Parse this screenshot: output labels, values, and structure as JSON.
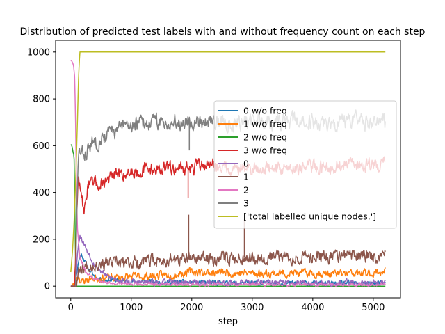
{
  "chart_data": {
    "type": "line",
    "title": "Distribution of predicted test labels with and without frequency count on each step",
    "xlabel": "step",
    "ylabel": "",
    "xlim": [
      -250,
      5450
    ],
    "ylim": [
      -50,
      1050
    ],
    "xticks": [
      0,
      1000,
      2000,
      3000,
      4000,
      5000
    ],
    "yticks": [
      0,
      200,
      400,
      600,
      800,
      1000
    ],
    "grid": false,
    "legend_position": "center-right",
    "x_start": 0,
    "x_end": 5200,
    "series": [
      {
        "name": "0 w/o freq",
        "color": "#1f77b4",
        "points": [
          [
            0,
            0
          ],
          [
            60,
            0
          ],
          [
            100,
            60
          ],
          [
            140,
            120
          ],
          [
            180,
            135
          ],
          [
            230,
            110
          ],
          [
            280,
            80
          ],
          [
            330,
            60
          ],
          [
            400,
            40
          ],
          [
            500,
            30
          ],
          [
            700,
            25
          ],
          [
            1000,
            20
          ],
          [
            1500,
            18
          ],
          [
            2000,
            15
          ],
          [
            2500,
            14
          ],
          [
            3000,
            13
          ],
          [
            4000,
            12
          ],
          [
            5200,
            12
          ]
        ],
        "noise": 8,
        "seed": 11
      },
      {
        "name": "1 w/o freq",
        "color": "#ff7f0e",
        "points": [
          [
            0,
            0
          ],
          [
            60,
            0
          ],
          [
            120,
            50
          ],
          [
            180,
            15
          ],
          [
            260,
            30
          ],
          [
            400,
            35
          ],
          [
            600,
            35
          ],
          [
            1000,
            40
          ],
          [
            1500,
            45
          ],
          [
            1800,
            55
          ],
          [
            2000,
            60
          ],
          [
            2500,
            58
          ],
          [
            3000,
            55
          ],
          [
            3500,
            55
          ],
          [
            4000,
            55
          ],
          [
            4500,
            52
          ],
          [
            5000,
            55
          ],
          [
            5200,
            65
          ]
        ],
        "noise": 14,
        "seed": 23
      },
      {
        "name": "2 w/o freq",
        "color": "#2ca02c",
        "points": [
          [
            0,
            605
          ],
          [
            20,
            600
          ],
          [
            40,
            570
          ],
          [
            55,
            560
          ],
          [
            70,
            300
          ],
          [
            85,
            0
          ],
          [
            5200,
            0
          ]
        ],
        "noise": 0,
        "seed": 31
      },
      {
        "name": "3 w/o freq",
        "color": "#d62728",
        "points": [
          [
            60,
            0
          ],
          [
            100,
            300
          ],
          [
            130,
            480
          ],
          [
            160,
            400
          ],
          [
            200,
            350
          ],
          [
            240,
            330
          ],
          [
            280,
            440
          ],
          [
            350,
            430
          ],
          [
            500,
            440
          ],
          [
            700,
            470
          ],
          [
            1000,
            490
          ],
          [
            1300,
            500
          ],
          [
            1600,
            500
          ],
          [
            1800,
            510
          ],
          [
            2000,
            500
          ],
          [
            2200,
            520
          ],
          [
            2500,
            510
          ],
          [
            3000,
            500
          ],
          [
            3500,
            505
          ],
          [
            4000,
            510
          ],
          [
            4500,
            515
          ],
          [
            5000,
            520
          ],
          [
            5200,
            525
          ]
        ],
        "noise": 24,
        "seed": 47
      },
      {
        "name": "0",
        "color": "#9467bd",
        "points": [
          [
            0,
            0
          ],
          [
            80,
            0
          ],
          [
            110,
            150
          ],
          [
            150,
            220
          ],
          [
            200,
            190
          ],
          [
            280,
            150
          ],
          [
            400,
            90
          ],
          [
            600,
            40
          ],
          [
            900,
            20
          ],
          [
            1200,
            15
          ],
          [
            2000,
            15
          ],
          [
            3000,
            15
          ],
          [
            4000,
            14
          ],
          [
            5200,
            15
          ]
        ],
        "noise": 10,
        "seed": 53
      },
      {
        "name": "1",
        "color": "#8c564b",
        "points": [
          [
            0,
            0
          ],
          [
            80,
            0
          ],
          [
            150,
            80
          ],
          [
            300,
            90
          ],
          [
            500,
            100
          ],
          [
            700,
            95
          ],
          [
            1000,
            100
          ],
          [
            1500,
            110
          ],
          [
            2000,
            115
          ],
          [
            2500,
            120
          ],
          [
            3000,
            125
          ],
          [
            3500,
            125
          ],
          [
            4000,
            125
          ],
          [
            4500,
            130
          ],
          [
            5000,
            130
          ],
          [
            5200,
            135
          ]
        ],
        "noise": 22,
        "seed": 67
      },
      {
        "name": "2",
        "color": "#e377c2",
        "points": [
          [
            0,
            965
          ],
          [
            25,
            960
          ],
          [
            45,
            940
          ],
          [
            65,
            890
          ],
          [
            80,
            700
          ],
          [
            95,
            400
          ],
          [
            110,
            250
          ],
          [
            150,
            120
          ],
          [
            250,
            60
          ],
          [
            400,
            30
          ],
          [
            600,
            15
          ],
          [
            1000,
            8
          ],
          [
            5200,
            5
          ]
        ],
        "noise": 5,
        "seed": 71
      },
      {
        "name": "3",
        "color": "#7f7f7f",
        "points": [
          [
            80,
            0
          ],
          [
            100,
            290
          ],
          [
            130,
            580
          ],
          [
            170,
            560
          ],
          [
            230,
            560
          ],
          [
            300,
            590
          ],
          [
            400,
            620
          ],
          [
            600,
            650
          ],
          [
            800,
            670
          ],
          [
            1000,
            690
          ],
          [
            1300,
            700
          ],
          [
            1600,
            700
          ],
          [
            1900,
            705
          ],
          [
            2200,
            710
          ],
          [
            2500,
            700
          ],
          [
            3000,
            705
          ],
          [
            3500,
            705
          ],
          [
            4000,
            700
          ],
          [
            4500,
            700
          ],
          [
            5000,
            705
          ],
          [
            5200,
            700
          ]
        ],
        "noise": 28,
        "seed": 83
      },
      {
        "name": "['total labelled unique nodes.']",
        "color": "#bcbd22",
        "points": [
          [
            0,
            60
          ],
          [
            30,
            150
          ],
          [
            60,
            300
          ],
          [
            90,
            520
          ],
          [
            110,
            700
          ],
          [
            130,
            900
          ],
          [
            150,
            1000
          ],
          [
            5200,
            1000
          ]
        ],
        "noise": 0,
        "seed": 97
      }
    ],
    "spikes": [
      {
        "series": "3",
        "x": 1960,
        "y": 580
      },
      {
        "series": "3 w/o freq",
        "x": 1940,
        "y": 375
      },
      {
        "series": "1",
        "x": 1950,
        "y": 305
      },
      {
        "series": "1",
        "x": 2870,
        "y": 285
      }
    ]
  }
}
